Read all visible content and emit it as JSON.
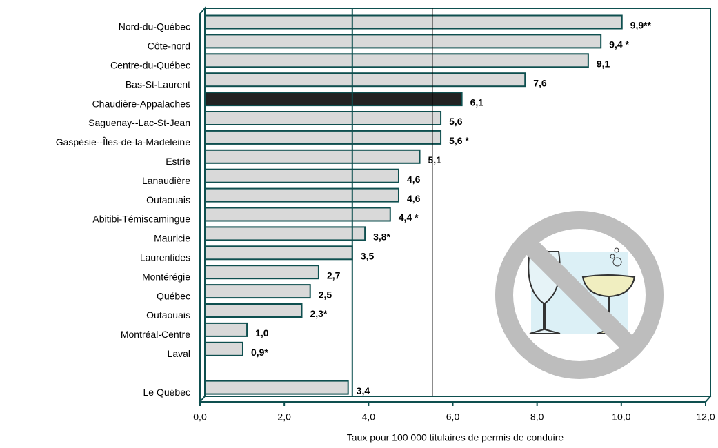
{
  "chart_data": {
    "type": "hbar",
    "x_label": "Taux pour 100 000 titulaires de permis de conduire",
    "categories": [
      "Nord-du-Québec",
      "Côte-nord",
      "Centre-du-Québec",
      "Bas-St-Laurent",
      "Chaudière-Appalaches",
      "Saguenay--Lac-St-Jean",
      "Gaspésie--Îles-de-la-Madeleine",
      "Estrie",
      "Lanaudière",
      "Outaouais",
      "Abitibi-Témiscamingue",
      "Mauricie",
      "Laurentides",
      "Montérégie",
      "Québec",
      "Outaouais",
      "Montréal-Centre",
      "Laval",
      null,
      "Le Québec"
    ],
    "values": [
      9.9,
      9.4,
      9.1,
      7.6,
      6.1,
      5.6,
      5.6,
      5.1,
      4.6,
      4.6,
      4.4,
      3.8,
      3.5,
      2.7,
      2.5,
      2.3,
      1.0,
      0.9,
      null,
      3.4
    ],
    "value_labels": [
      "9,9**",
      "9,4 *",
      "9,1",
      "7,6",
      "6,1",
      "5,6",
      "5,6 *",
      "5,1",
      "4,6",
      "4,6",
      "4,4 *",
      "3,8*",
      "3,5",
      "2,7",
      "2,5",
      "2,3*",
      "1,0",
      "0,9*",
      null,
      "3,4"
    ],
    "colors": [
      "#d9d9d9",
      "#d9d9d9",
      "#d9d9d9",
      "#d9d9d9",
      "#222222",
      "#d9d9d9",
      "#d9d9d9",
      "#d9d9d9",
      "#d9d9d9",
      "#d9d9d9",
      "#d9d9d9",
      "#d9d9d9",
      "#d9d9d9",
      "#d9d9d9",
      "#d9d9d9",
      "#d9d9d9",
      "#d9d9d9",
      "#d9d9d9",
      null,
      "#d9d9d9"
    ],
    "edge_color": "#0e4f4f",
    "reference_lines": [
      {
        "value": 3.5,
        "color": "#0e4f4f"
      },
      {
        "value": 5.4,
        "color": "#000000"
      }
    ],
    "xlim": [
      0,
      12
    ],
    "xticks": [
      {
        "value": 0,
        "label": "0,0"
      },
      {
        "value": 2,
        "label": "2,0"
      },
      {
        "value": 4,
        "label": "4,0"
      },
      {
        "value": 6,
        "label": "6,0"
      },
      {
        "value": 8,
        "label": "8,0"
      },
      {
        "value": 10,
        "label": "10,0"
      },
      {
        "value": 12,
        "label": "12,0"
      }
    ]
  }
}
